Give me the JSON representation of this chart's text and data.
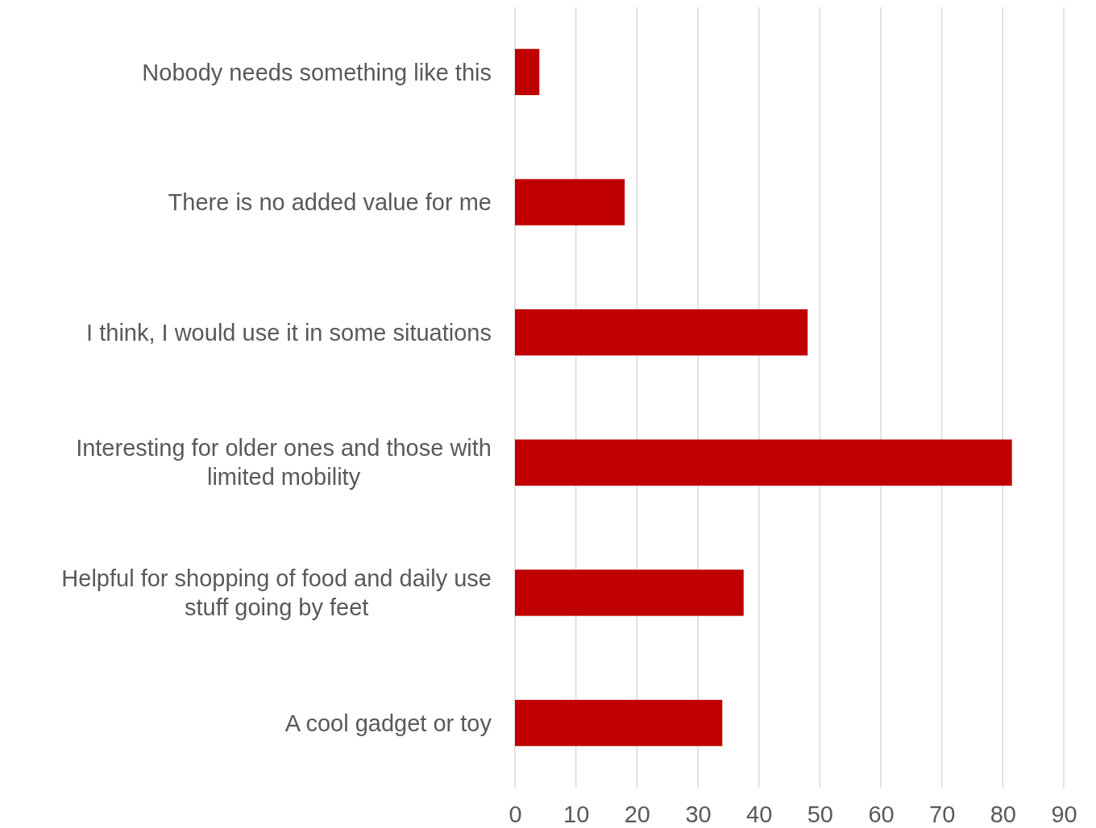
{
  "chart_data": {
    "type": "bar",
    "orientation": "horizontal",
    "categories": [
      "Nobody needs something like this",
      "There is no added value for me",
      "I think, I would use it in some situations",
      "Interesting for older ones and those with limited mobility",
      "Helpful for shopping of food and daily use stuff going by feet",
      "A cool gadget or toy"
    ],
    "values": [
      4,
      18,
      48,
      81.5,
      37.5,
      34
    ],
    "color": "#c00000",
    "xlim": [
      0,
      90
    ],
    "xticks": [
      0,
      10,
      20,
      30,
      40,
      50,
      60,
      70,
      80,
      90
    ],
    "grid": "x"
  }
}
